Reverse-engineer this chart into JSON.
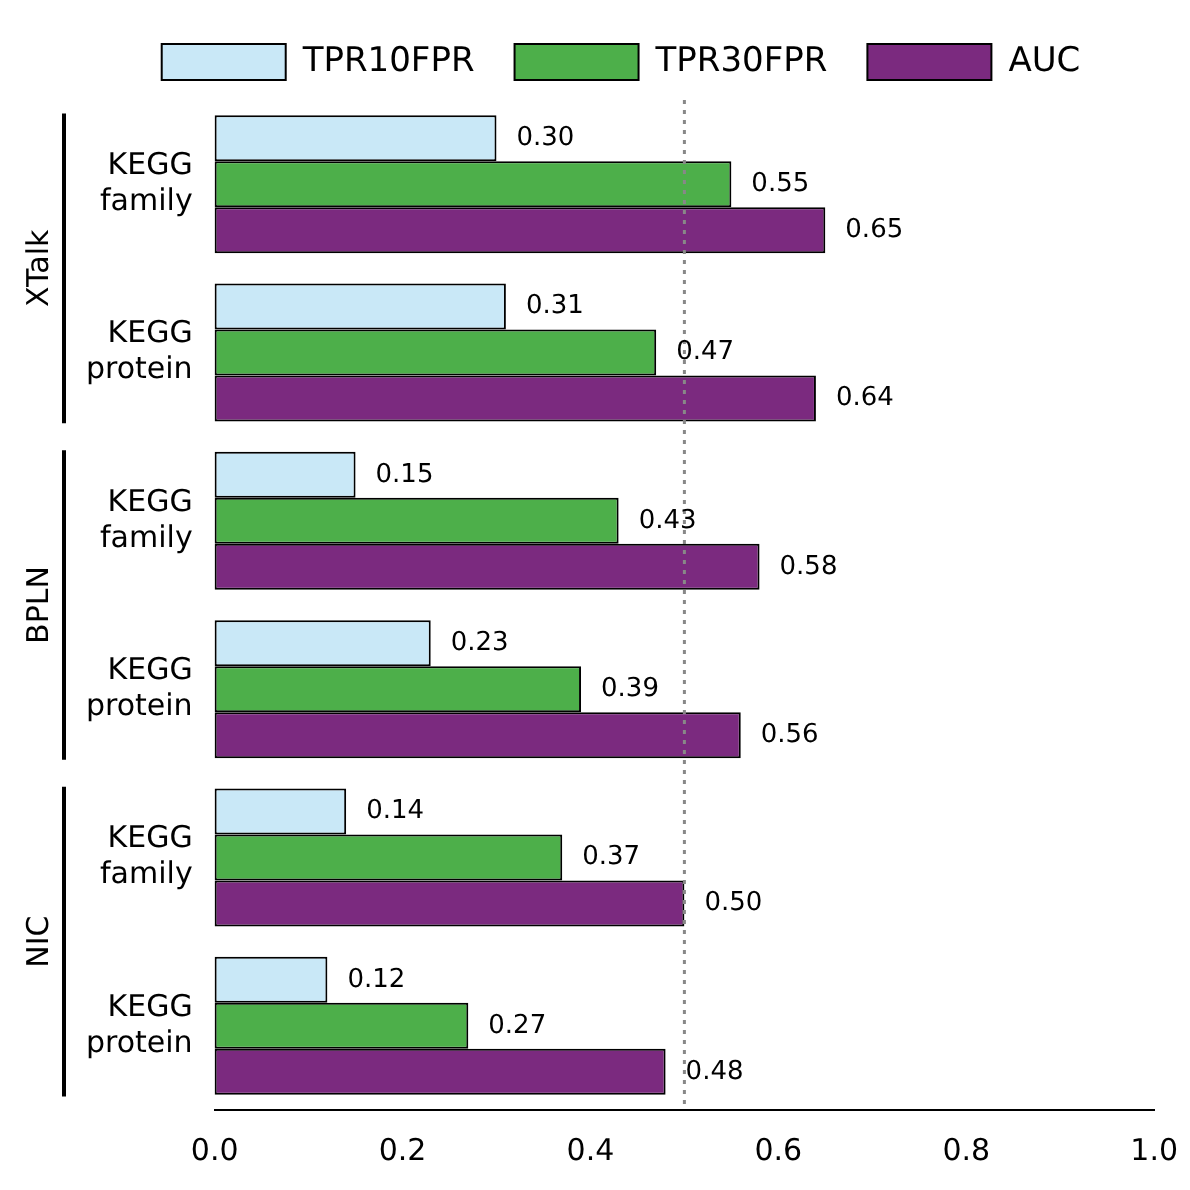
{
  "chart_data": {
    "type": "bar",
    "orientation": "horizontal",
    "categories": [
      "KEGG family",
      "KEGG protein",
      "KEGG family",
      "KEGG protein",
      "KEGG family",
      "KEGG protein"
    ],
    "series": [
      {
        "name": "TPR10FPR",
        "color": "#c9e8f7",
        "values": [
          0.3,
          0.31,
          0.15,
          0.23,
          0.14,
          0.12
        ],
        "value_labels": [
          "0.30",
          "0.31",
          "0.15",
          "0.23",
          "0.14",
          "0.12"
        ]
      },
      {
        "name": "TPR30FPR",
        "color": "#4daf4a",
        "values": [
          0.55,
          0.47,
          0.43,
          0.39,
          0.37,
          0.27
        ],
        "value_labels": [
          "0.55",
          "0.47",
          "0.43",
          "0.39",
          "0.37",
          "0.27"
        ]
      },
      {
        "name": "AUC",
        "color": "#7b2a7f",
        "values": [
          0.65,
          0.64,
          0.58,
          0.56,
          0.5,
          0.48
        ],
        "value_labels": [
          "0.65",
          "0.64",
          "0.58",
          "0.56",
          "0.50",
          "0.48"
        ]
      }
    ],
    "annotations": [
      "XTalk",
      "BPLN",
      "NIC"
    ],
    "xlim": [
      0,
      1
    ],
    "xticks": [
      {
        "value": 0,
        "label": "0.0"
      },
      {
        "value": 0.2,
        "label": "0.2"
      },
      {
        "value": 0.4,
        "label": "0.4"
      },
      {
        "value": 0.6,
        "label": "0.6"
      },
      {
        "value": 0.8,
        "label": "0.8"
      },
      {
        "value": 1,
        "label": "1.0"
      }
    ],
    "ref_lines": [
      {
        "axis": "x",
        "value": 0.5,
        "color": "#888888",
        "line_style": "dotted"
      }
    ],
    "grid": false,
    "legend": "top"
  }
}
